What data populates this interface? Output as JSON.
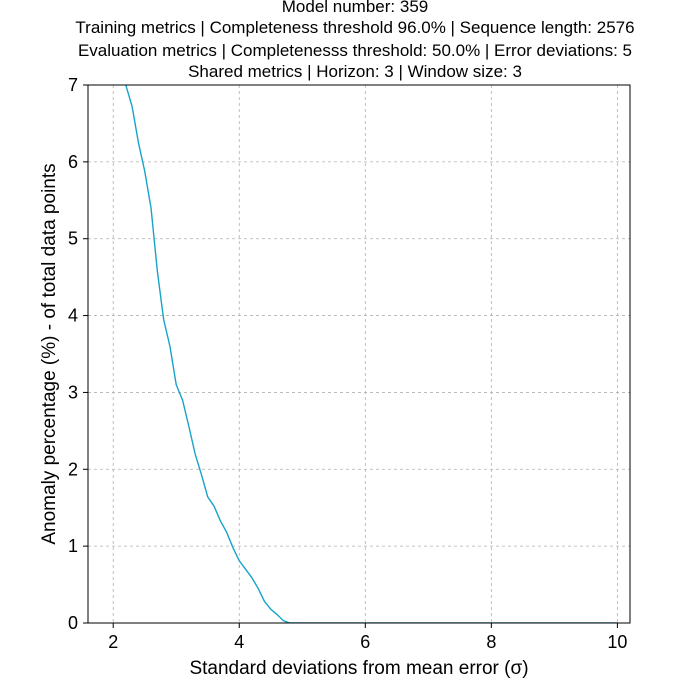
{
  "chart_data": {
    "type": "line",
    "title_lines": [
      "Model number: 359",
      "Training metrics | Completeness threshold 96.0% | Sequence length: 2576",
      "Evaluation metrics | Completenesss threshold: 50.0% | Error deviations: 5",
      "Shared metrics | Horizon: 3 | Window size: 3"
    ],
    "xlabel": "Standard deviations from mean error (σ)",
    "ylabel": "Anomaly percentage (%) - of total data points",
    "xlim": [
      1.6,
      10.2
    ],
    "ylim": [
      0,
      7
    ],
    "xticks": [
      "2",
      "4",
      "6",
      "8",
      "10"
    ],
    "yticks": [
      "0",
      "1",
      "2",
      "3",
      "4",
      "5",
      "6",
      "7"
    ],
    "grid": true,
    "line_color": "#17a3c9",
    "series": [
      {
        "x": [
          2.0,
          2.1,
          2.2,
          2.3,
          2.4,
          2.5,
          2.6,
          2.7,
          2.8,
          2.9,
          3.0,
          3.1,
          3.2,
          3.3,
          3.4,
          3.5,
          3.6,
          3.7,
          3.8,
          3.9,
          4.0,
          4.1,
          4.2,
          4.3,
          4.4,
          4.5,
          4.6,
          4.7,
          4.8,
          4.9,
          5.0,
          6.0,
          7.0,
          8.0,
          9.0,
          10.0
        ],
        "y": [
          7.6,
          7.3,
          7.0,
          6.72,
          6.25,
          5.88,
          5.4,
          4.58,
          3.95,
          3.6,
          3.1,
          2.9,
          2.56,
          2.2,
          1.93,
          1.64,
          1.52,
          1.33,
          1.18,
          0.98,
          0.81,
          0.7,
          0.59,
          0.45,
          0.28,
          0.18,
          0.11,
          0.03,
          0.0,
          0.0,
          0.0,
          0.0,
          0.0,
          0.0,
          0.0,
          0.0
        ]
      }
    ]
  }
}
